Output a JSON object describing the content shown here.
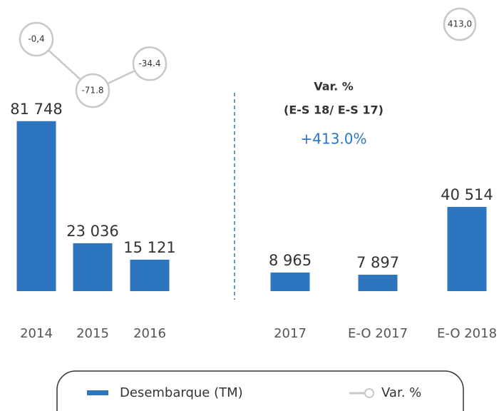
{
  "chart_data": {
    "type": "bar",
    "categories": [
      "2014",
      "2015",
      "2016",
      "2017",
      "E-O 2017",
      "E-O 2018"
    ],
    "series": [
      {
        "name": "Desembarque (TM)",
        "color": "#2e75c0",
        "values": [
          81748,
          23036,
          15121,
          8965,
          7897,
          40514
        ],
        "value_labels": [
          "81 748",
          "23 036",
          "15 121",
          "8 965",
          "7 897",
          "40 514"
        ]
      },
      {
        "name": "Var. %",
        "color": "#c8c8c8",
        "axis": "y2",
        "type": "line",
        "values": [
          -0.4,
          -71.8,
          -34.4,
          null,
          null,
          null
        ],
        "value_labels": [
          "-0,4",
          "-71.8",
          "-34.4",
          null,
          null,
          null
        ]
      }
    ],
    "ylim": [
      0,
      140000
    ],
    "y2lim": [
      -350,
      54
    ],
    "annotations": [
      "413,0",
      "Var. %",
      "(E-S 18/ E-S 17)",
      "+413.0%"
    ]
  }
}
